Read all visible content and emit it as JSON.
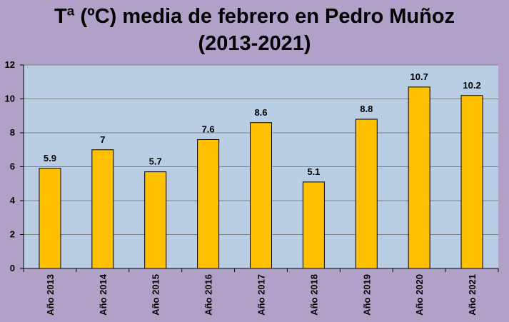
{
  "chart_data": {
    "type": "bar",
    "title_line1": "Tª (ºC) media de febrero en Pedro Muñoz",
    "title_line2": "(2013-2021)",
    "categories": [
      "Año 2013",
      "Año 2014",
      "Año 2015",
      "Año 2016",
      "Año 2017",
      "Año 2018",
      "Año 2019",
      "Año 2020",
      "Año 2021"
    ],
    "values": [
      5.9,
      7,
      5.7,
      7.6,
      8.6,
      5.1,
      8.8,
      10.7,
      10.2
    ],
    "ylim": [
      0,
      12
    ],
    "yticks": [
      0,
      2,
      4,
      6,
      8,
      10,
      12
    ],
    "grid": true,
    "colors": {
      "bar": "#ffc000",
      "bar_stroke": "#000000",
      "plot_bg": "#b9cde5",
      "grid": "#808080",
      "page_bg": "#b1a0c7"
    }
  }
}
